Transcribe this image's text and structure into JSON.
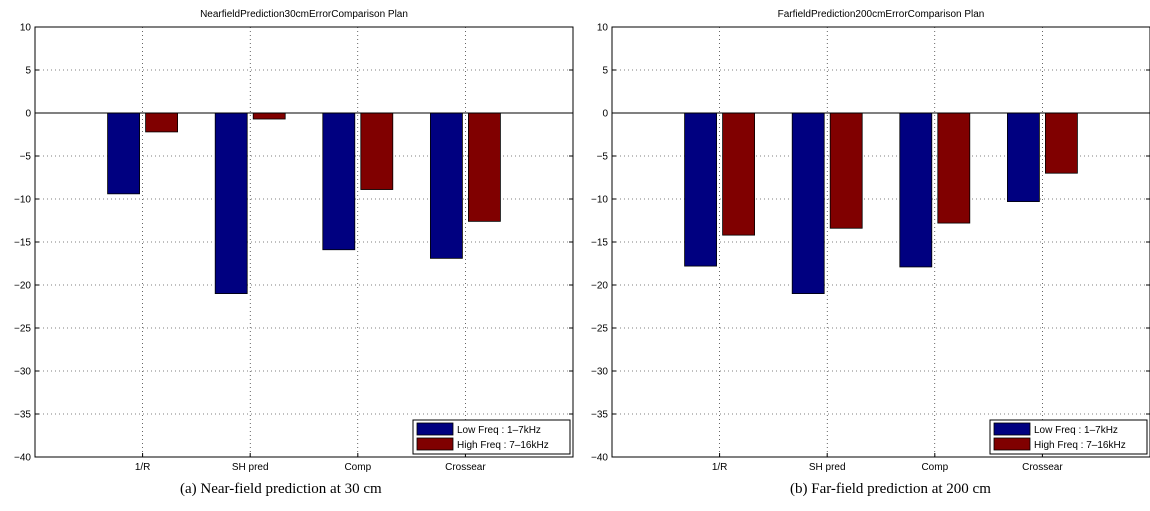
{
  "colors": {
    "low": "#000080",
    "high": "#800000"
  },
  "chart_data": [
    {
      "type": "bar",
      "title": "NearfieldPrediction30cmErrorComparison Plan",
      "caption": "(a)  Near-field prediction at 30 cm",
      "categories": [
        "1/R",
        "SH pred",
        "Comp",
        "Crossear"
      ],
      "series": [
        {
          "name": "Low Freq : 1–7kHz",
          "values": [
            -9.4,
            -21.0,
            -15.9,
            -16.9
          ]
        },
        {
          "name": "High Freq : 7–16kHz",
          "values": [
            -2.2,
            -0.7,
            -8.9,
            -12.6
          ]
        }
      ],
      "ylim": [
        -40,
        10
      ],
      "yticks": [
        "10",
        "5",
        "0",
        "−5",
        "−10",
        "−15",
        "−20",
        "−25",
        "−30",
        "−35",
        "−40"
      ],
      "ytick_values": [
        10,
        5,
        0,
        -5,
        -10,
        -15,
        -20,
        -25,
        -30,
        -35,
        -40
      ],
      "grid": true,
      "legend_position": "bottom-right",
      "xlabel": "",
      "ylabel": ""
    },
    {
      "type": "bar",
      "title": "FarfieldPrediction200cmErrorComparison Plan",
      "caption": "(b)  Far-field prediction at 200 cm",
      "categories": [
        "1/R",
        "SH pred",
        "Comp",
        "Crossear"
      ],
      "series": [
        {
          "name": "Low Freq : 1–7kHz",
          "values": [
            -17.8,
            -21.0,
            -17.9,
            -10.3
          ]
        },
        {
          "name": "High Freq : 7–16kHz",
          "values": [
            -14.2,
            -13.4,
            -12.8,
            -7.0
          ]
        }
      ],
      "ylim": [
        -40,
        10
      ],
      "yticks": [
        "10",
        "5",
        "0",
        "−5",
        "−10",
        "−15",
        "−20",
        "−25",
        "−30",
        "−35",
        "−40"
      ],
      "ytick_values": [
        10,
        5,
        0,
        -5,
        -10,
        -15,
        -20,
        -25,
        -30,
        -35,
        -40
      ],
      "grid": true,
      "legend_position": "bottom-right",
      "xlabel": "",
      "ylabel": ""
    }
  ]
}
